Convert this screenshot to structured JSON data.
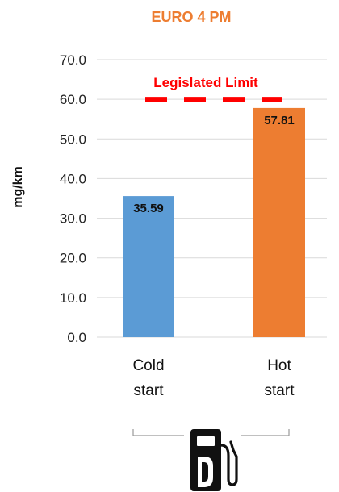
{
  "chart_data": {
    "type": "bar",
    "title": "EURO 4 PM",
    "ylabel": "mg/km",
    "xlabel": "",
    "ylim": [
      0,
      70
    ],
    "yticks": [
      "0.0",
      "10.0",
      "20.0",
      "30.0",
      "40.0",
      "50.0",
      "60.0",
      "70.0"
    ],
    "categories": [
      [
        "Cold",
        "start"
      ],
      [
        "Hot",
        "start"
      ]
    ],
    "values": [
      35.59,
      57.81
    ],
    "data_labels": [
      "35.59",
      "57.81"
    ],
    "bar_colors": [
      "#5b9bd5",
      "#ed7d31"
    ],
    "reference_line": {
      "label": "Legislated Limit",
      "value": 60,
      "color": "#ff0000",
      "style": "dashed"
    },
    "grid": true
  },
  "colors": {
    "title": "#ed7d31",
    "limit": "#ff0000",
    "grid": "#d9d9d9"
  },
  "icon": "diesel-fuel-pump-icon"
}
